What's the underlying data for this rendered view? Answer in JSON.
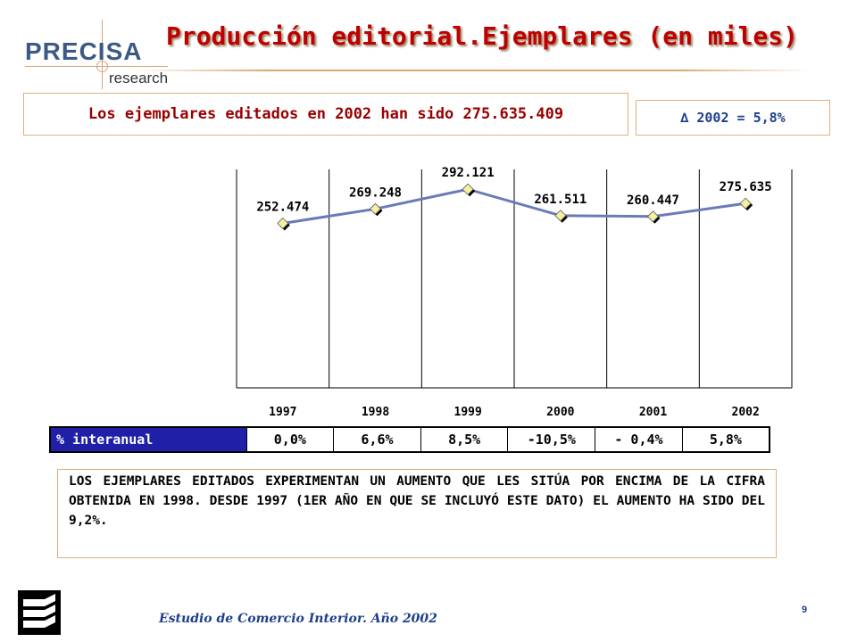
{
  "brand": {
    "logo_main": "PRECISA",
    "logo_sub": "research"
  },
  "slide": {
    "title": "Producción editorial.Ejemplares (en miles)",
    "headline": "Los ejemplares editados en 2002 han sido 275.635.409",
    "delta_box": "∆ 2002 = 5,8%",
    "note": "LOS EJEMPLARES EDITADOS EXPERIMENTAN UN AUMENTO QUE LES SITÚA POR ENCIMA DE LA CIFRA OBTENIDA EN 1998. DESDE 1997 (1ER AÑO EN QUE SE INCLUYÓ ESTE DATO) EL AUMENTO HA SIDO DEL 9,2%.",
    "footer": "Estudio de Comercio Interior. Año 2002",
    "page_number": "9"
  },
  "chart_data": {
    "type": "line",
    "categories": [
      "1997",
      "1998",
      "1999",
      "2000",
      "2001",
      "2002"
    ],
    "values": [
      252.474,
      269.248,
      292.121,
      261.511,
      260.447,
      275.635
    ],
    "value_labels": [
      "252.474",
      "269.248",
      "292.121",
      "261.511",
      "260.447",
      "275.635"
    ],
    "ylim": [
      0,
      310
    ],
    "line_color": "#6b7ab8",
    "marker_color": "#f5f0a0",
    "grid": "vertical",
    "table": {
      "header": "% interanual",
      "values": [
        "0,0%",
        "6,6%",
        "8,5%",
        "-10,5%",
        "- 0,4%",
        "5,8%"
      ]
    }
  },
  "colors": {
    "title": "#c00000",
    "accent_border": "#e0b080",
    "table_header_bg": "#1f1fa8",
    "footer_text": "#1e3f8a"
  }
}
